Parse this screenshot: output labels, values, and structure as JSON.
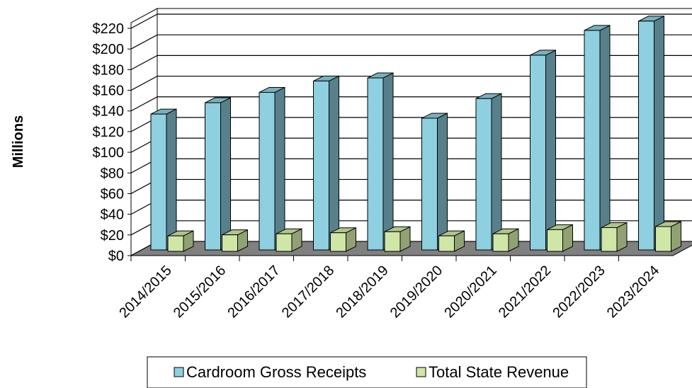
{
  "chart_data": {
    "type": "bar",
    "ylabel": "Millions",
    "categories": [
      "2014/2015",
      "2015/2016",
      "2016/2017",
      "2017/2018",
      "2018/2019",
      "2019/2020",
      "2020/2021",
      "2021/2022",
      "2022/2023",
      "2023/2024"
    ],
    "series": [
      {
        "name": "Cardroom Gross Receipts",
        "values": [
          137,
          148,
          158,
          169,
          172,
          133,
          152,
          194,
          218,
          227
        ],
        "color": "#8ecfe0"
      },
      {
        "name": "Total State Revenue",
        "values": [
          15,
          16,
          17,
          18,
          19,
          15,
          17,
          21,
          23,
          24
        ],
        "color": "#cfe6a6"
      }
    ],
    "ylim": [
      0,
      220
    ],
    "yticks": [
      "$0",
      "$20",
      "$40",
      "$60",
      "$80",
      "$100",
      "$120",
      "$140",
      "$160",
      "$180",
      "$200",
      "$220"
    ],
    "grid": true,
    "legend_position": "bottom",
    "style": "3d-clustered-column"
  }
}
